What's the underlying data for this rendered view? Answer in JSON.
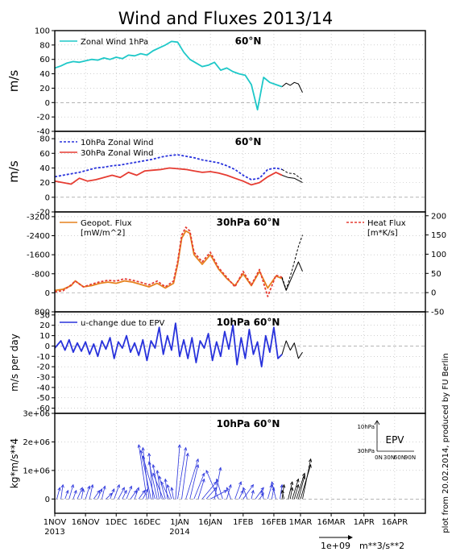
{
  "figure": {
    "title": "Wind and Fluxes 2013/14",
    "side_note": "plot from 20.02.2014, produced by FU Berlin",
    "x_tick_labels": [
      "1NOV",
      "16NOV",
      "1DEC",
      "16DEC",
      "1JAN",
      "16JAN",
      "1FEB",
      "16FEB",
      "1MAR",
      "16MAR",
      "1APR",
      "16APR"
    ],
    "x_tick_days": [
      0,
      15,
      30,
      45,
      61,
      76,
      92,
      107,
      120,
      135,
      151,
      166
    ],
    "x_year_labels": [
      {
        "day": 0,
        "label": "2013"
      },
      {
        "day": 61,
        "label": "2014"
      }
    ],
    "x_range_days": [
      0,
      181
    ],
    "colors": {
      "frame": "#000000",
      "grid": "#b4b4b4",
      "forecast": "#000000"
    }
  },
  "chart_data": [
    {
      "id": "p1",
      "type": "line",
      "title": "60°N",
      "ylabel": "m/s",
      "ylim": [
        -40,
        100
      ],
      "yticks": [
        -40,
        -20,
        0,
        20,
        40,
        60,
        80,
        100
      ],
      "legend": [
        "Zonal Wind 1hPa"
      ],
      "series": [
        {
          "name": "Zonal Wind 1hPa",
          "color": "#1ec8c8",
          "x": [
            0,
            3,
            6,
            9,
            12,
            15,
            18,
            21,
            24,
            27,
            30,
            33,
            36,
            39,
            42,
            45,
            48,
            51,
            54,
            57,
            60,
            63,
            66,
            69,
            72,
            75,
            78,
            81,
            84,
            87,
            90,
            93,
            96,
            99,
            102,
            105,
            108,
            111
          ],
          "y": [
            48,
            51,
            55,
            57,
            56,
            58,
            60,
            59,
            62,
            60,
            63,
            61,
            66,
            65,
            68,
            66,
            72,
            76,
            80,
            85,
            84,
            70,
            60,
            55,
            50,
            52,
            56,
            45,
            48,
            43,
            40,
            38,
            25,
            -10,
            35,
            28,
            25,
            22
          ]
        },
        {
          "name": "forecast",
          "color": "#000000",
          "dash": false,
          "x": [
            111,
            113,
            115,
            117,
            119,
            121
          ],
          "y": [
            22,
            27,
            24,
            28,
            26,
            14
          ]
        }
      ]
    },
    {
      "id": "p2",
      "type": "line",
      "title": "60°N",
      "ylabel": "m/s",
      "ylim": [
        -20,
        90
      ],
      "yticks": [
        -20,
        0,
        20,
        40,
        60,
        80
      ],
      "legend": [
        "10hPa Zonal Wind",
        "30hPa Zonal Wind"
      ],
      "series": [
        {
          "name": "10hPa Zonal Wind",
          "color": "#2832dc",
          "dash": true,
          "x": [
            0,
            4,
            8,
            12,
            16,
            20,
            24,
            28,
            32,
            36,
            40,
            44,
            48,
            52,
            56,
            60,
            64,
            68,
            72,
            76,
            80,
            84,
            88,
            92,
            96,
            100,
            104,
            108,
            111
          ],
          "y": [
            28,
            30,
            32,
            34,
            37,
            40,
            41,
            43,
            44,
            46,
            48,
            50,
            52,
            55,
            57,
            58,
            56,
            54,
            51,
            49,
            47,
            43,
            38,
            30,
            24,
            26,
            38,
            40,
            38
          ]
        },
        {
          "name": "30hPa Zonal Wind",
          "color": "#e63c32",
          "dash": false,
          "x": [
            0,
            4,
            8,
            12,
            16,
            20,
            24,
            28,
            32,
            36,
            40,
            44,
            48,
            52,
            56,
            60,
            64,
            68,
            72,
            76,
            80,
            84,
            88,
            92,
            96,
            100,
            104,
            108,
            111
          ],
          "y": [
            22,
            20,
            18,
            26,
            22,
            24,
            27,
            30,
            27,
            34,
            30,
            36,
            37,
            38,
            40,
            39,
            38,
            36,
            34,
            35,
            33,
            30,
            26,
            22,
            17,
            20,
            28,
            34,
            30
          ]
        },
        {
          "name": "forecast",
          "color": "#000000",
          "dash": true,
          "x": [
            111,
            114,
            117,
            121
          ],
          "y": [
            38,
            33,
            32,
            24
          ]
        },
        {
          "name": "forecast",
          "color": "#000000",
          "dash": false,
          "x": [
            111,
            114,
            117,
            121
          ],
          "y": [
            30,
            27,
            26,
            20
          ]
        }
      ]
    },
    {
      "id": "p3",
      "type": "line",
      "title": "30hPa 60°N",
      "ylabel": "",
      "ylim": [
        -3400,
        800
      ],
      "yticks": [
        -3200,
        -2400,
        -1600,
        -800,
        0,
        800
      ],
      "y_inverted": true,
      "y2lim": [
        -50,
        210
      ],
      "y2ticks": [
        -50,
        0,
        50,
        100,
        150,
        200
      ],
      "legend": [
        "Geopot. Flux [mW/m^2]",
        "Heat Flux [m*K/s]"
      ],
      "series": [
        {
          "name": "Geopot. Flux",
          "color": "#e6821e",
          "dash": false,
          "axis": "left",
          "x": [
            0,
            4,
            8,
            10,
            14,
            18,
            22,
            26,
            30,
            34,
            38,
            42,
            46,
            50,
            54,
            58,
            60,
            62,
            64,
            66,
            68,
            72,
            76,
            80,
            84,
            88,
            92,
            96,
            100,
            104,
            108,
            111
          ],
          "y": [
            -100,
            -150,
            -300,
            -500,
            -250,
            -300,
            -400,
            -450,
            -400,
            -500,
            -450,
            -350,
            -250,
            -400,
            -200,
            -400,
            -1200,
            -2300,
            -2600,
            -2500,
            -1600,
            -1200,
            -1600,
            -1000,
            -600,
            -300,
            -800,
            -300,
            -900,
            -200,
            -700,
            -600
          ]
        },
        {
          "name": "Heat Flux",
          "color": "#e63c32",
          "dash": true,
          "axis": "right",
          "x": [
            0,
            4,
            8,
            10,
            14,
            18,
            22,
            26,
            30,
            34,
            38,
            42,
            46,
            50,
            54,
            58,
            60,
            62,
            64,
            66,
            68,
            72,
            76,
            80,
            84,
            88,
            92,
            96,
            100,
            104,
            108,
            111
          ],
          "y": [
            2,
            5,
            20,
            30,
            15,
            22,
            28,
            32,
            30,
            36,
            32,
            27,
            20,
            30,
            15,
            30,
            80,
            150,
            170,
            160,
            105,
            80,
            105,
            65,
            40,
            15,
            55,
            20,
            60,
            -10,
            45,
            40
          ]
        },
        {
          "name": "forecast",
          "color": "#000000",
          "dash": false,
          "axis": "left",
          "x": [
            111,
            113,
            116,
            119,
            121
          ],
          "y": [
            -600,
            -100,
            -700,
            -1300,
            -900
          ]
        },
        {
          "name": "forecast",
          "color": "#000000",
          "dash": true,
          "axis": "right",
          "x": [
            111,
            113,
            116,
            119,
            121
          ],
          "y": [
            40,
            8,
            60,
            120,
            150
          ]
        }
      ]
    },
    {
      "id": "p4",
      "type": "line",
      "title": "10hPa 60°N",
      "ylabel": "m/s per day",
      "ylim": [
        -65,
        33
      ],
      "yticks": [
        -60,
        -50,
        -40,
        -30,
        -20,
        -10,
        0,
        10,
        20,
        30
      ],
      "legend": [
        "u-change due to EPV"
      ],
      "series": [
        {
          "name": "u-change due to EPV",
          "color": "#2832dc",
          "dash": false,
          "x": [
            0,
            3,
            5,
            7,
            9,
            11,
            13,
            15,
            17,
            19,
            21,
            23,
            25,
            27,
            29,
            31,
            33,
            35,
            37,
            39,
            41,
            43,
            45,
            47,
            49,
            51,
            53,
            55,
            57,
            59,
            61,
            63,
            65,
            67,
            69,
            71,
            73,
            75,
            77,
            79,
            81,
            83,
            85,
            87,
            89,
            91,
            93,
            95,
            97,
            99,
            101,
            103,
            105,
            107,
            109,
            111
          ],
          "y": [
            -2,
            5,
            -4,
            6,
            -6,
            3,
            -5,
            4,
            -8,
            2,
            -10,
            5,
            -3,
            8,
            -12,
            4,
            -2,
            10,
            -6,
            3,
            -9,
            6,
            -14,
            5,
            -2,
            18,
            -8,
            10,
            -4,
            22,
            -10,
            6,
            -12,
            8,
            -16,
            5,
            -2,
            12,
            -14,
            4,
            -10,
            14,
            -3,
            20,
            -18,
            8,
            -12,
            16,
            -8,
            4,
            -20,
            10,
            -6,
            18,
            -12,
            -8
          ]
        },
        {
          "name": "forecast",
          "color": "#000000",
          "dash": false,
          "x": [
            111,
            113,
            115,
            117,
            119,
            121
          ],
          "y": [
            -8,
            5,
            -4,
            3,
            -12,
            -6
          ]
        }
      ]
    },
    {
      "id": "p5",
      "type": "scatter",
      "title": "10hPa 60°N",
      "ylabel": "kg*m/s**4",
      "ylim": [
        -500000,
        3000000
      ],
      "yticks": [
        0,
        1000000,
        2000000,
        3000000
      ],
      "ytick_labels": [
        "0",
        "1e+06",
        "2e+06",
        "3e+06"
      ],
      "arrow_scale_label": "1e+09",
      "arrow_units_label": "m**3/s**2",
      "inset": {
        "title": "EPV",
        "y_labels": [
          "10hPa",
          "30hPa"
        ],
        "x_labels": [
          "0N",
          "30N",
          "60N",
          "90N"
        ]
      },
      "series": [
        {
          "name": "EP flux vectors",
          "color": "#2832dc",
          "x": [
            1,
            3,
            5,
            7,
            9,
            11,
            13,
            15,
            17,
            19,
            21,
            23,
            25,
            27,
            29,
            31,
            33,
            35,
            37,
            39,
            41,
            43,
            45,
            46,
            47,
            48,
            49,
            50,
            51,
            52,
            53,
            54,
            55,
            56,
            57,
            58,
            59,
            60,
            62,
            64,
            66,
            68,
            70,
            72,
            74,
            76,
            78,
            80,
            82,
            84,
            86,
            88,
            90,
            92,
            94,
            96,
            98,
            100,
            102,
            104,
            106,
            108,
            110
          ],
          "u": [
            1.5,
            1,
            1.5,
            2,
            1.5,
            2.5,
            1,
            2,
            1.5,
            3,
            2,
            1.5,
            3,
            2,
            2.5,
            3,
            2,
            2.5,
            3,
            2,
            3,
            2.5,
            -4,
            -3,
            -5,
            -2,
            -6,
            -4,
            -3,
            -2,
            -5,
            -3,
            -1,
            -4,
            -2,
            -1,
            2,
            4,
            3,
            6,
            4,
            5,
            3,
            7,
            5,
            8,
            3,
            -6,
            -3,
            2,
            -2,
            3,
            2,
            5,
            -2,
            1,
            4,
            2,
            -1,
            2,
            1,
            -2,
            1
          ],
          "y": [
            400000,
            500000,
            300000,
            500000,
            300000,
            400000,
            350000,
            450000,
            500000,
            300000,
            350000,
            450000,
            200000,
            350000,
            500000,
            400000,
            300000,
            450000,
            300000,
            400000,
            300000,
            350000,
            1900000,
            1800000,
            1700000,
            1600000,
            1500000,
            1300000,
            1200000,
            1000000,
            900000,
            800000,
            700000,
            600000,
            500000,
            400000,
            1900000,
            1800000,
            1600000,
            1400000,
            1200000,
            900000,
            700000,
            600000,
            400000,
            300000,
            1100000,
            1000000,
            700000,
            500000,
            400000,
            600000,
            300000,
            500000,
            400000,
            300000,
            400000,
            200000,
            300000,
            500000,
            400000,
            600000,
            500000
          ]
        },
        {
          "name": "forecast",
          "color": "#000000",
          "x": [
            111,
            112,
            114,
            115,
            116,
            117,
            118,
            119,
            120,
            121
          ],
          "u": [
            1,
            -1,
            2,
            1,
            3,
            2,
            4,
            3,
            5,
            4
          ],
          "y": [
            500000,
            300000,
            600000,
            400000,
            700000,
            500000,
            900000,
            800000,
            1200000,
            1400000
          ]
        }
      ]
    }
  ]
}
